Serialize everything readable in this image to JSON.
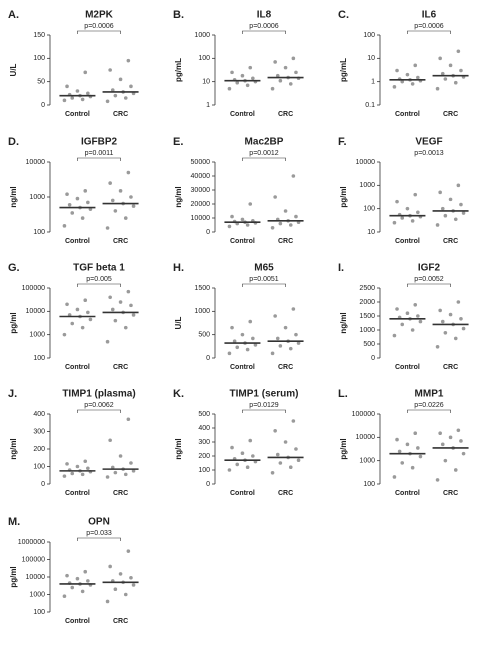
{
  "chart_data": [
    {
      "type": "strip",
      "panel_label": "A.",
      "title": "M2PK",
      "y_label": "U/L",
      "categories": [
        "Control",
        "CRC"
      ],
      "log": false,
      "ylim": [
        0,
        150
      ],
      "yticks": [
        0,
        50,
        100,
        150
      ],
      "p_label": "p=0.0006",
      "bracket": true,
      "color": "#9a9a9a",
      "points": [
        [
          10,
          12,
          15,
          18,
          20,
          22,
          25,
          30,
          40,
          70
        ],
        [
          8,
          15,
          20,
          25,
          28,
          32,
          40,
          55,
          75,
          95
        ]
      ],
      "medians": [
        20,
        28
      ]
    },
    {
      "type": "strip",
      "panel_label": "B.",
      "title": "IL8",
      "y_label": "pg/mL",
      "categories": [
        "Control",
        "CRC"
      ],
      "log": true,
      "ylim": [
        1,
        1000
      ],
      "yticks": [
        1,
        10,
        100,
        1000
      ],
      "p_label": "p=0.0006",
      "bracket": true,
      "color": "#9a9a9a",
      "points": [
        [
          5,
          7,
          9,
          10,
          11,
          12,
          14,
          18,
          25,
          40
        ],
        [
          5,
          8,
          11,
          14,
          15,
          18,
          25,
          40,
          70,
          100
        ]
      ],
      "medians": [
        11,
        15
      ]
    },
    {
      "type": "strip",
      "panel_label": "C.",
      "title": "IL6",
      "y_label": "pg/mL",
      "categories": [
        "Control",
        "CRC"
      ],
      "log": true,
      "ylim": [
        0.1,
        100
      ],
      "yticks": [
        0.1,
        1,
        10,
        100
      ],
      "p_label": "p=0.0006",
      "bracket": true,
      "color": "#9a9a9a",
      "points": [
        [
          0.6,
          0.8,
          1,
          1.1,
          1.2,
          1.3,
          1.5,
          2,
          3,
          5
        ],
        [
          0.5,
          0.9,
          1.3,
          1.6,
          1.8,
          2.2,
          3,
          5,
          10,
          20
        ]
      ],
      "medians": [
        1.2,
        1.8
      ]
    },
    {
      "type": "strip",
      "panel_label": "D.",
      "title": "IGFBP2",
      "y_label": "ng/ml",
      "categories": [
        "Control",
        "CRC"
      ],
      "log": true,
      "ylim": [
        100,
        10000
      ],
      "yticks": [
        100,
        1000,
        10000
      ],
      "p_label": "p=0.0011",
      "bracket": true,
      "color": "#9a9a9a",
      "points": [
        [
          150,
          250,
          350,
          450,
          500,
          600,
          700,
          900,
          1200,
          1500
        ],
        [
          130,
          250,
          400,
          550,
          650,
          800,
          1000,
          1500,
          2500,
          5000
        ]
      ],
      "medians": [
        500,
        650
      ]
    },
    {
      "type": "strip",
      "panel_label": "E.",
      "title": "Mac2BP",
      "y_label": "ng/ml",
      "categories": [
        "Control",
        "CRC"
      ],
      "log": false,
      "ylim": [
        0,
        50000
      ],
      "yticks": [
        0,
        10000,
        20000,
        30000,
        40000,
        50000
      ],
      "p_label": "p=0.0012",
      "bracket": true,
      "color": "#9a9a9a",
      "points": [
        [
          4000,
          5000,
          6000,
          6500,
          7000,
          7500,
          8000,
          9000,
          11000,
          20000
        ],
        [
          3000,
          5000,
          6000,
          7000,
          8000,
          9000,
          11000,
          15000,
          25000,
          40000
        ]
      ],
      "medians": [
        7000,
        8000
      ]
    },
    {
      "type": "strip",
      "panel_label": "F.",
      "title": "VEGF",
      "y_label": "pg/ml",
      "categories": [
        "Control",
        "CRC"
      ],
      "log": true,
      "ylim": [
        10,
        10000
      ],
      "yticks": [
        10,
        100,
        1000,
        10000
      ],
      "p_label": "p=0.0013",
      "bracket": false,
      "color": "#9a9a9a",
      "points": [
        [
          25,
          30,
          40,
          45,
          50,
          55,
          70,
          100,
          200,
          400
        ],
        [
          20,
          35,
          50,
          65,
          80,
          100,
          150,
          250,
          500,
          1000
        ]
      ],
      "medians": [
        50,
        80
      ]
    },
    {
      "type": "strip",
      "panel_label": "G.",
      "title": "TGF beta 1",
      "y_label": "pg/ml",
      "categories": [
        "Control",
        "CRC"
      ],
      "log": true,
      "ylim": [
        100,
        100000
      ],
      "yticks": [
        100,
        1000,
        10000,
        100000
      ],
      "p_label": "p=0.005",
      "bracket": true,
      "color": "#9a9a9a",
      "points": [
        [
          1000,
          2000,
          3000,
          4500,
          6000,
          7000,
          9000,
          12000,
          20000,
          30000
        ],
        [
          500,
          2000,
          4000,
          7000,
          9000,
          12000,
          18000,
          25000,
          40000,
          70000
        ]
      ],
      "medians": [
        6000,
        9000
      ]
    },
    {
      "type": "strip",
      "panel_label": "H.",
      "title": "M65",
      "y_label": "U/L",
      "categories": [
        "Control",
        "CRC"
      ],
      "log": false,
      "ylim": [
        0,
        1500
      ],
      "yticks": [
        0,
        500,
        1000,
        1500
      ],
      "p_label": "p=0.0051",
      "bracket": true,
      "color": "#9a9a9a",
      "points": [
        [
          100,
          180,
          230,
          280,
          320,
          360,
          420,
          500,
          650,
          780
        ],
        [
          100,
          200,
          260,
          320,
          360,
          420,
          500,
          650,
          900,
          1050
        ]
      ],
      "medians": [
        320,
        360
      ]
    },
    {
      "type": "strip",
      "panel_label": "I.",
      "title": "IGF2",
      "y_label": "ng/ml",
      "categories": [
        "Control",
        "CRC"
      ],
      "log": false,
      "ylim": [
        0,
        2500
      ],
      "yticks": [
        0,
        500,
        1000,
        1500,
        2000,
        2500
      ],
      "p_label": "p=0.0052",
      "bracket": true,
      "color": "#9a9a9a",
      "points": [
        [
          800,
          1000,
          1200,
          1300,
          1400,
          1450,
          1500,
          1600,
          1750,
          1900
        ],
        [
          400,
          700,
          900,
          1050,
          1200,
          1300,
          1400,
          1550,
          1700,
          2000
        ]
      ],
      "medians": [
        1400,
        1200
      ]
    },
    {
      "type": "strip",
      "panel_label": "J.",
      "title": "TIMP1 (plasma)",
      "y_label": "ng/ml",
      "categories": [
        "Control",
        "CRC"
      ],
      "log": false,
      "ylim": [
        0,
        400
      ],
      "yticks": [
        0,
        100,
        200,
        300,
        400
      ],
      "p_label": "p=0.0062",
      "bracket": true,
      "color": "#9a9a9a",
      "points": [
        [
          45,
          55,
          60,
          70,
          75,
          80,
          90,
          100,
          115,
          130
        ],
        [
          40,
          55,
          65,
          75,
          85,
          95,
          120,
          160,
          250,
          370
        ]
      ],
      "medians": [
        75,
        85
      ]
    },
    {
      "type": "strip",
      "panel_label": "K.",
      "title": "TIMP1 (serum)",
      "y_label": "ng/ml",
      "categories": [
        "Control",
        "CRC"
      ],
      "log": false,
      "ylim": [
        0,
        500
      ],
      "yticks": [
        0,
        100,
        200,
        300,
        400,
        500
      ],
      "p_label": "p=0.0129",
      "bracket": true,
      "color": "#9a9a9a",
      "points": [
        [
          100,
          120,
          140,
          160,
          170,
          180,
          200,
          220,
          260,
          310
        ],
        [
          80,
          120,
          150,
          170,
          190,
          210,
          250,
          300,
          380,
          450
        ]
      ],
      "medians": [
        170,
        190
      ]
    },
    {
      "type": "strip",
      "panel_label": "L.",
      "title": "MMP1",
      "y_label": "pg/ml",
      "categories": [
        "Control",
        "CRC"
      ],
      "log": true,
      "ylim": [
        100,
        100000
      ],
      "yticks": [
        100,
        1000,
        10000,
        100000
      ],
      "p_label": "p=0.0226",
      "bracket": true,
      "color": "#9a9a9a",
      "points": [
        [
          200,
          500,
          800,
          1500,
          2000,
          2500,
          3500,
          5000,
          8000,
          15000
        ],
        [
          150,
          400,
          1000,
          2000,
          3500,
          5000,
          7000,
          10000,
          15000,
          20000
        ]
      ],
      "medians": [
        2000,
        3500
      ]
    },
    {
      "type": "strip",
      "panel_label": "M.",
      "title": "OPN",
      "y_label": "pg/ml",
      "categories": [
        "Control",
        "CRC"
      ],
      "log": true,
      "ylim": [
        100,
        1000000
      ],
      "yticks": [
        100,
        1000,
        10000,
        100000,
        1000000
      ],
      "p_label": "p=0.033",
      "bracket": true,
      "color": "#9a9a9a",
      "points": [
        [
          800,
          1500,
          2500,
          3500,
          4000,
          4500,
          6000,
          8000,
          12000,
          20000
        ],
        [
          400,
          1000,
          2000,
          3500,
          5000,
          6000,
          9000,
          15000,
          40000,
          300000
        ]
      ],
      "medians": [
        4000,
        5000
      ]
    }
  ]
}
